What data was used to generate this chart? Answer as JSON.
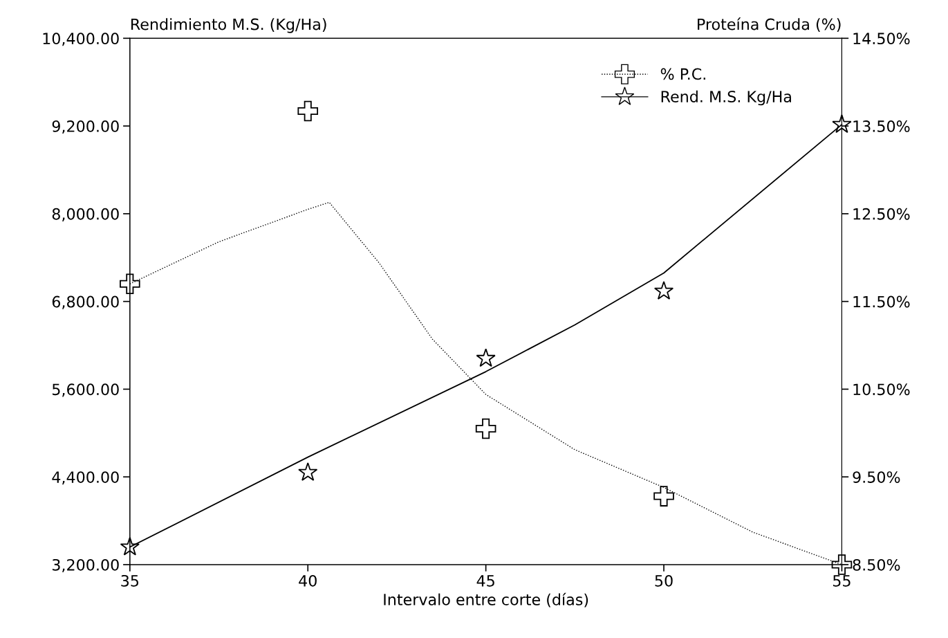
{
  "chart_data": {
    "type": "scatter",
    "xlabel": "Intervalo entre corte (días)",
    "ylabel": "Rendimiento M.S. (Kg/Ha)",
    "y2label": "Proteína Cruda (%)",
    "xlim": [
      35,
      55
    ],
    "xticks": [
      35,
      40,
      45,
      50,
      55
    ],
    "ylim": [
      3200,
      10400
    ],
    "yticks": [
      {
        "value": 3200,
        "label": "3,200.00"
      },
      {
        "value": 4400,
        "label": "4,400.00"
      },
      {
        "value": 5600,
        "label": "5,600.00"
      },
      {
        "value": 6800,
        "label": "6,800.00"
      },
      {
        "value": 8000,
        "label": "8,000.00"
      },
      {
        "value": 9200,
        "label": "9,200.00"
      },
      {
        "value": 10400,
        "label": "10,400.00"
      }
    ],
    "y2lim": [
      8.5,
      14.5
    ],
    "y2ticks": [
      {
        "value": 8.5,
        "label": "8.50%"
      },
      {
        "value": 9.5,
        "label": "9.50%"
      },
      {
        "value": 10.5,
        "label": "10.50%"
      },
      {
        "value": 11.5,
        "label": "11.50%"
      },
      {
        "value": 12.5,
        "label": "12.50%"
      },
      {
        "value": 13.5,
        "label": "13.50%"
      },
      {
        "value": 14.5,
        "label": "14.50%"
      }
    ],
    "legend": "top right",
    "grid": false,
    "series": [
      {
        "name": "% P.C.",
        "axis": "y2",
        "marker": "cross",
        "line_style": "dotted",
        "color": "#000000",
        "x": [
          35,
          40,
          45,
          50,
          55
        ],
        "values": [
          11.7,
          13.67,
          10.05,
          9.28,
          8.5
        ]
      },
      {
        "type": "line",
        "axis": "y2",
        "marker": "none",
        "line_style": "dotted",
        "color": "#000000",
        "x": [
          35,
          37.5,
          40,
          40.6,
          42,
          43.5,
          45,
          47.5,
          50,
          52.5,
          55
        ],
        "values": [
          11.7,
          12.18,
          12.55,
          12.63,
          11.94,
          11.07,
          10.44,
          9.81,
          9.38,
          8.87,
          8.5
        ]
      },
      {
        "name": "Rend. M.S. Kg/Ha",
        "marker": "star",
        "line_style": "solid",
        "color": "#000000",
        "x": [
          35,
          40,
          45,
          50,
          55
        ],
        "values": [
          3440,
          4460,
          6020,
          6940,
          9220
        ]
      },
      {
        "type": "line",
        "marker": "none",
        "line_style": "solid",
        "color": "#000000",
        "x": [
          35,
          40,
          45,
          47.5,
          50,
          55
        ],
        "values": [
          3440,
          4670,
          5840,
          6480,
          7190,
          9220
        ]
      }
    ]
  }
}
